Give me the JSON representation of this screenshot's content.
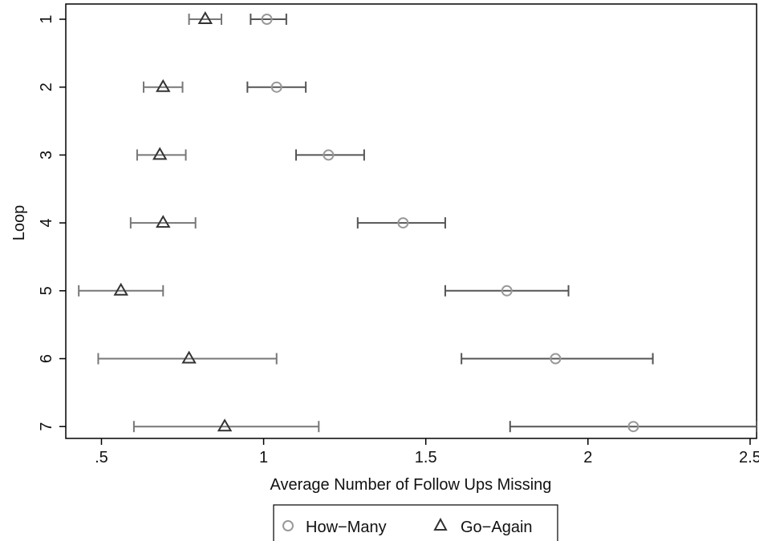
{
  "chart_data": {
    "type": "scatter",
    "title": "",
    "xlabel": "Average Number of Follow Ups Missing",
    "ylabel": "Loop",
    "xlim": [
      0.39,
      2.52
    ],
    "x_ticks": [
      {
        "value": 0.5,
        "label": ".5"
      },
      {
        "value": 1,
        "label": "1"
      },
      {
        "value": 1.5,
        "label": "1.5"
      },
      {
        "value": 2,
        "label": "2"
      },
      {
        "value": 2.5,
        "label": "2.5"
      }
    ],
    "categories": [
      "1",
      "2",
      "3",
      "4",
      "5",
      "6",
      "7"
    ],
    "grid": false,
    "legend_position": "bottom",
    "series": [
      {
        "name": "How−Many",
        "marker": "circle",
        "color": "#999999",
        "error_color": "#555555",
        "points": [
          {
            "loop": "1",
            "value": 1.01,
            "lo": 0.96,
            "hi": 1.07
          },
          {
            "loop": "2",
            "value": 1.04,
            "lo": 0.95,
            "hi": 1.13
          },
          {
            "loop": "3",
            "value": 1.2,
            "lo": 1.1,
            "hi": 1.31
          },
          {
            "loop": "4",
            "value": 1.43,
            "lo": 1.29,
            "hi": 1.56
          },
          {
            "loop": "5",
            "value": 1.75,
            "lo": 1.56,
            "hi": 1.94
          },
          {
            "loop": "6",
            "value": 1.9,
            "lo": 1.61,
            "hi": 2.2
          },
          {
            "loop": "7",
            "value": 2.14,
            "lo": 1.76,
            "hi": 2.52
          }
        ]
      },
      {
        "name": "Go−Again",
        "marker": "triangle",
        "color": "#333333",
        "error_color": "#777777",
        "points": [
          {
            "loop": "1",
            "value": 0.82,
            "lo": 0.77,
            "hi": 0.87
          },
          {
            "loop": "2",
            "value": 0.69,
            "lo": 0.63,
            "hi": 0.75
          },
          {
            "loop": "3",
            "value": 0.68,
            "lo": 0.61,
            "hi": 0.76
          },
          {
            "loop": "4",
            "value": 0.69,
            "lo": 0.59,
            "hi": 0.79
          },
          {
            "loop": "5",
            "value": 0.56,
            "lo": 0.43,
            "hi": 0.69
          },
          {
            "loop": "6",
            "value": 0.77,
            "lo": 0.49,
            "hi": 1.04
          },
          {
            "loop": "7",
            "value": 0.88,
            "lo": 0.6,
            "hi": 1.17
          }
        ]
      }
    ]
  }
}
